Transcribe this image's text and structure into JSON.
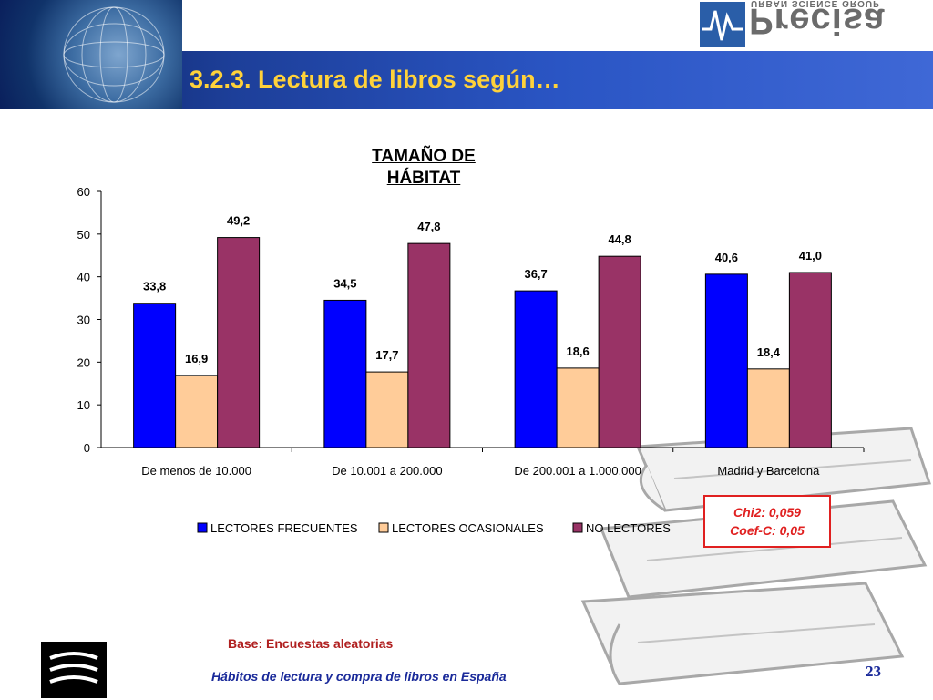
{
  "slide": {
    "title": "3.2.3. Lectura de libros según…",
    "logo_text": "Precisa",
    "logo_subtitle": "URBAN SCIENCE GROUP"
  },
  "stats": {
    "line1": "Chi2: 0,059",
    "line2": "Coef-C: 0,05"
  },
  "footer": {
    "base": "Base: Encuestas aleatorias",
    "title": "Hábitos de lectura y compra de libros en España",
    "page": "23"
  },
  "chart_data": {
    "type": "bar",
    "title_line1": "TAMAÑO DE",
    "title_line2": "HÁBITAT",
    "categories": [
      "De menos de 10.000",
      "De 10.001 a 200.000",
      "De 200.001 a 1.000.000",
      "Madrid y Barcelona"
    ],
    "series": [
      {
        "name": "LECTORES FRECUENTES",
        "values": [
          33.8,
          34.5,
          36.7,
          40.6
        ],
        "labels": [
          "33,8",
          "34,5",
          "36,7",
          "40,6"
        ],
        "color": "#0000ff"
      },
      {
        "name": "LECTORES OCASIONALES",
        "values": [
          16.9,
          17.7,
          18.6,
          18.4
        ],
        "labels": [
          "16,9",
          "17,7",
          "18,6",
          "18,4"
        ],
        "color": "#ffcc99"
      },
      {
        "name": "NO LECTORES",
        "values": [
          49.2,
          47.8,
          44.8,
          41.0
        ],
        "labels": [
          "49,2",
          "47,8",
          "44,8",
          "41,0"
        ],
        "color": "#993366"
      }
    ],
    "ylim": [
      0,
      60
    ],
    "yticks": [
      "0",
      "10",
      "20",
      "30",
      "40",
      "50",
      "60"
    ],
    "grid": false,
    "legend_position": "bottom"
  }
}
